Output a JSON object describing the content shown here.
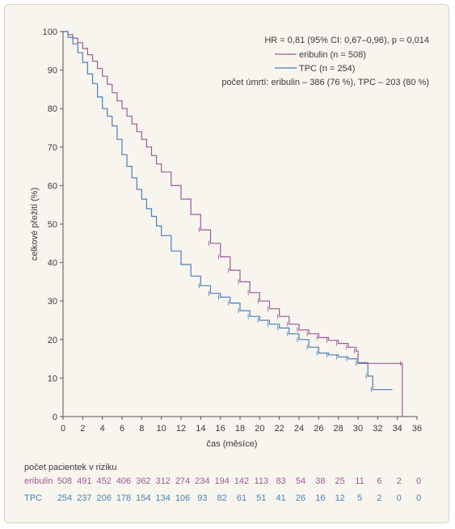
{
  "chart_data": {
    "type": "line",
    "subtype": "kaplan-meier",
    "xlabel": "čas (měsíce)",
    "ylabel": "celkové přežití (%)",
    "xlim": [
      0,
      36
    ],
    "ylim": [
      0,
      100
    ],
    "x_ticks": [
      0,
      2,
      4,
      6,
      8,
      10,
      12,
      14,
      16,
      18,
      20,
      22,
      24,
      26,
      28,
      30,
      32,
      34,
      36
    ],
    "y_ticks": [
      0,
      10,
      20,
      30,
      40,
      50,
      60,
      70,
      80,
      90,
      100
    ],
    "grid": false,
    "annotations": [
      "HR = 0,81 (95% CI: 0,67–0,96), p = 0,014",
      "počet úmrtí: eribulin – 386 (76 %), TPC – 203 (80 %)"
    ],
    "series": [
      {
        "name": "eribulin (n = 508)",
        "color": "#9b5a96",
        "points": [
          [
            0,
            100
          ],
          [
            0.5,
            99.2
          ],
          [
            1,
            98.3
          ],
          [
            1.5,
            97.1
          ],
          [
            2,
            95.6
          ],
          [
            2.5,
            94
          ],
          [
            3,
            92.3
          ],
          [
            3.5,
            90.4
          ],
          [
            4,
            88.4
          ],
          [
            4.5,
            86.3
          ],
          [
            5,
            84.1
          ],
          [
            5.5,
            82
          ],
          [
            6,
            80
          ],
          [
            6.5,
            78
          ],
          [
            7,
            76
          ],
          [
            7.5,
            74
          ],
          [
            8,
            72
          ],
          [
            8.5,
            70
          ],
          [
            9,
            67.8
          ],
          [
            9.5,
            65.6
          ],
          [
            10,
            63.5
          ],
          [
            11,
            60
          ],
          [
            12,
            56.5
          ],
          [
            13,
            52.5
          ],
          [
            14,
            48.5
          ],
          [
            15,
            45
          ],
          [
            16,
            41.5
          ],
          [
            17,
            38
          ],
          [
            18,
            35
          ],
          [
            19,
            32.2
          ],
          [
            20,
            30
          ],
          [
            21,
            28
          ],
          [
            22,
            26
          ],
          [
            23,
            24
          ],
          [
            24,
            22.5
          ],
          [
            25,
            21.5
          ],
          [
            26,
            20.5
          ],
          [
            27,
            19.8
          ],
          [
            28,
            19
          ],
          [
            29,
            18
          ],
          [
            29.8,
            17
          ],
          [
            30,
            13.8
          ],
          [
            34.5,
            13.8
          ],
          [
            34.5,
            0
          ]
        ]
      },
      {
        "name": "TPC (n = 254)",
        "color": "#4a7fb8",
        "points": [
          [
            0,
            100
          ],
          [
            0.5,
            98.5
          ],
          [
            1,
            96.8
          ],
          [
            1.5,
            94.5
          ],
          [
            2,
            92
          ],
          [
            2.5,
            89
          ],
          [
            3,
            86.5
          ],
          [
            3.5,
            83
          ],
          [
            4,
            80
          ],
          [
            4.5,
            78
          ],
          [
            5,
            75.5
          ],
          [
            5.5,
            72
          ],
          [
            6,
            68
          ],
          [
            6.5,
            65
          ],
          [
            7,
            62
          ],
          [
            7.5,
            59
          ],
          [
            8,
            56.5
          ],
          [
            8.5,
            54
          ],
          [
            9,
            52
          ],
          [
            9.5,
            49.5
          ],
          [
            10,
            47
          ],
          [
            11,
            43
          ],
          [
            12,
            39.5
          ],
          [
            13,
            36.5
          ],
          [
            14,
            34
          ],
          [
            15,
            32
          ],
          [
            16,
            31
          ],
          [
            17,
            29.5
          ],
          [
            18,
            27.5
          ],
          [
            19,
            26
          ],
          [
            20,
            25
          ],
          [
            21,
            24
          ],
          [
            22,
            23
          ],
          [
            23,
            21.5
          ],
          [
            24,
            20
          ],
          [
            25,
            18
          ],
          [
            26,
            16.5
          ],
          [
            27,
            16
          ],
          [
            28,
            15.5
          ],
          [
            29,
            15
          ],
          [
            30,
            14
          ],
          [
            31,
            10.5
          ],
          [
            31.5,
            7
          ],
          [
            33.5,
            7
          ]
        ]
      }
    ],
    "risk_table": {
      "title": "počet pacientek v riziku",
      "times": [
        0,
        2,
        4,
        6,
        8,
        10,
        12,
        14,
        16,
        18,
        20,
        22,
        24,
        26,
        28,
        30,
        32,
        34,
        36
      ],
      "rows": [
        {
          "label": "eribulin",
          "values": [
            508,
            491,
            452,
            406,
            362,
            312,
            274,
            234,
            194,
            142,
            113,
            83,
            54,
            38,
            25,
            11,
            6,
            2,
            0
          ]
        },
        {
          "label": "TPC",
          "values": [
            254,
            237,
            206,
            178,
            154,
            134,
            106,
            93,
            82,
            61,
            51,
            41,
            26,
            16,
            12,
            5,
            2,
            0,
            0
          ]
        }
      ]
    }
  }
}
